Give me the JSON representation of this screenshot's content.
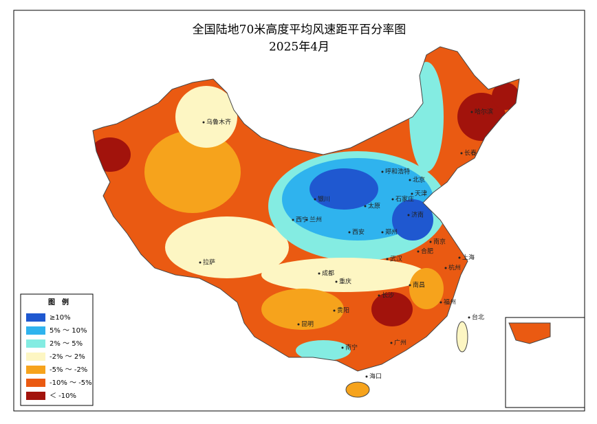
{
  "header": {
    "title": "全国陆地70米高度平均风速距平百分率图",
    "subtitle": "2025年4月"
  },
  "legend": {
    "title": "图　例",
    "items": [
      {
        "label": "≥10%",
        "color": "#1f58d0"
      },
      {
        "label": "5% ～ 10%",
        "color": "#2fb3ee"
      },
      {
        "label": "2% ～ 5%",
        "color": "#84ece2"
      },
      {
        "label": "-2% ～ 2%",
        "color": "#fdf6c3"
      },
      {
        "label": "-5% ～ -2%",
        "color": "#f6a31c"
      },
      {
        "label": "-10% ～ -5%",
        "color": "#ea5a12"
      },
      {
        "label": "＜ -10%",
        "color": "#a2130c"
      }
    ]
  },
  "cities": [
    "乌鲁木齐",
    "哈尔滨",
    "长春",
    "呼和浩特",
    "北京",
    "天津",
    "石家庄",
    "太原",
    "济南",
    "银川",
    "兰州",
    "西宁",
    "西安",
    "郑州",
    "南京",
    "上海",
    "合肥",
    "拉萨",
    "成都",
    "重庆",
    "武汉",
    "杭州",
    "长沙",
    "南昌",
    "福州",
    "贵阳",
    "昆明",
    "南宁",
    "广州",
    "台北",
    "海口"
  ]
}
